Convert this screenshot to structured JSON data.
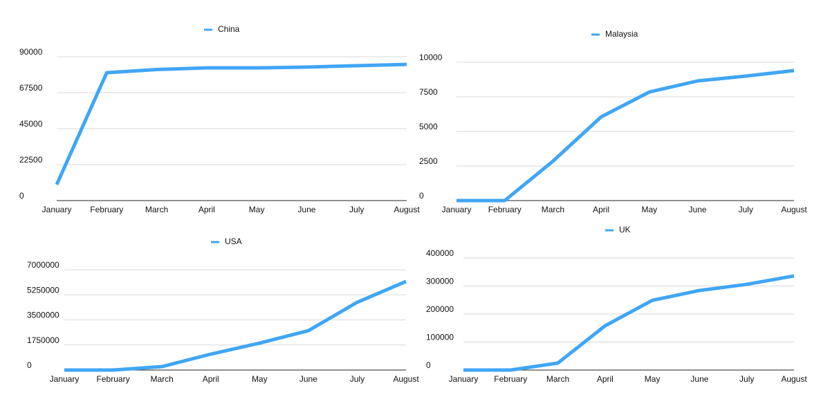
{
  "chart_data": [
    {
      "type": "line",
      "categories": [
        "January",
        "February",
        "March",
        "April",
        "May",
        "June",
        "July",
        "August"
      ],
      "series": [
        {
          "name": "China",
          "color": "#40a6f5",
          "values": [
            10000,
            80000,
            82000,
            83000,
            83000,
            83500,
            84400,
            85200
          ]
        }
      ],
      "ylim": [
        0,
        90000
      ],
      "yticks": [
        0,
        22500,
        45000,
        67500,
        90000
      ],
      "grid": true
    },
    {
      "type": "line",
      "categories": [
        "January",
        "February",
        "March",
        "April",
        "May",
        "June",
        "July",
        "August"
      ],
      "series": [
        {
          "name": "Malaysia",
          "color": "#40a6f5",
          "values": [
            0,
            0,
            2850,
            6050,
            7850,
            8650,
            9000,
            9400
          ]
        }
      ],
      "ylim": [
        0,
        10000
      ],
      "yticks": [
        0,
        2500,
        5000,
        7500,
        10000
      ],
      "grid": true
    },
    {
      "type": "line",
      "categories": [
        "January",
        "February",
        "March",
        "April",
        "May",
        "June",
        "July",
        "August"
      ],
      "series": [
        {
          "name": "USA",
          "color": "#40a6f5",
          "values": [
            0,
            0,
            240000,
            1110000,
            1880000,
            2750000,
            4730000,
            6180000
          ]
        }
      ],
      "ylim": [
        0,
        7000000
      ],
      "yticks": [
        0,
        1750000,
        3500000,
        5250000,
        7000000
      ],
      "grid": true
    },
    {
      "type": "line",
      "categories": [
        "January",
        "February",
        "March",
        "April",
        "May",
        "June",
        "July",
        "August"
      ],
      "series": [
        {
          "name": "UK",
          "color": "#40a6f5",
          "values": [
            0,
            0,
            25000,
            158000,
            249000,
            284000,
            306000,
            336000
          ]
        }
      ],
      "ylim": [
        0,
        400000
      ],
      "yticks": [
        0,
        100000,
        200000,
        300000,
        400000
      ],
      "grid": true
    }
  ]
}
